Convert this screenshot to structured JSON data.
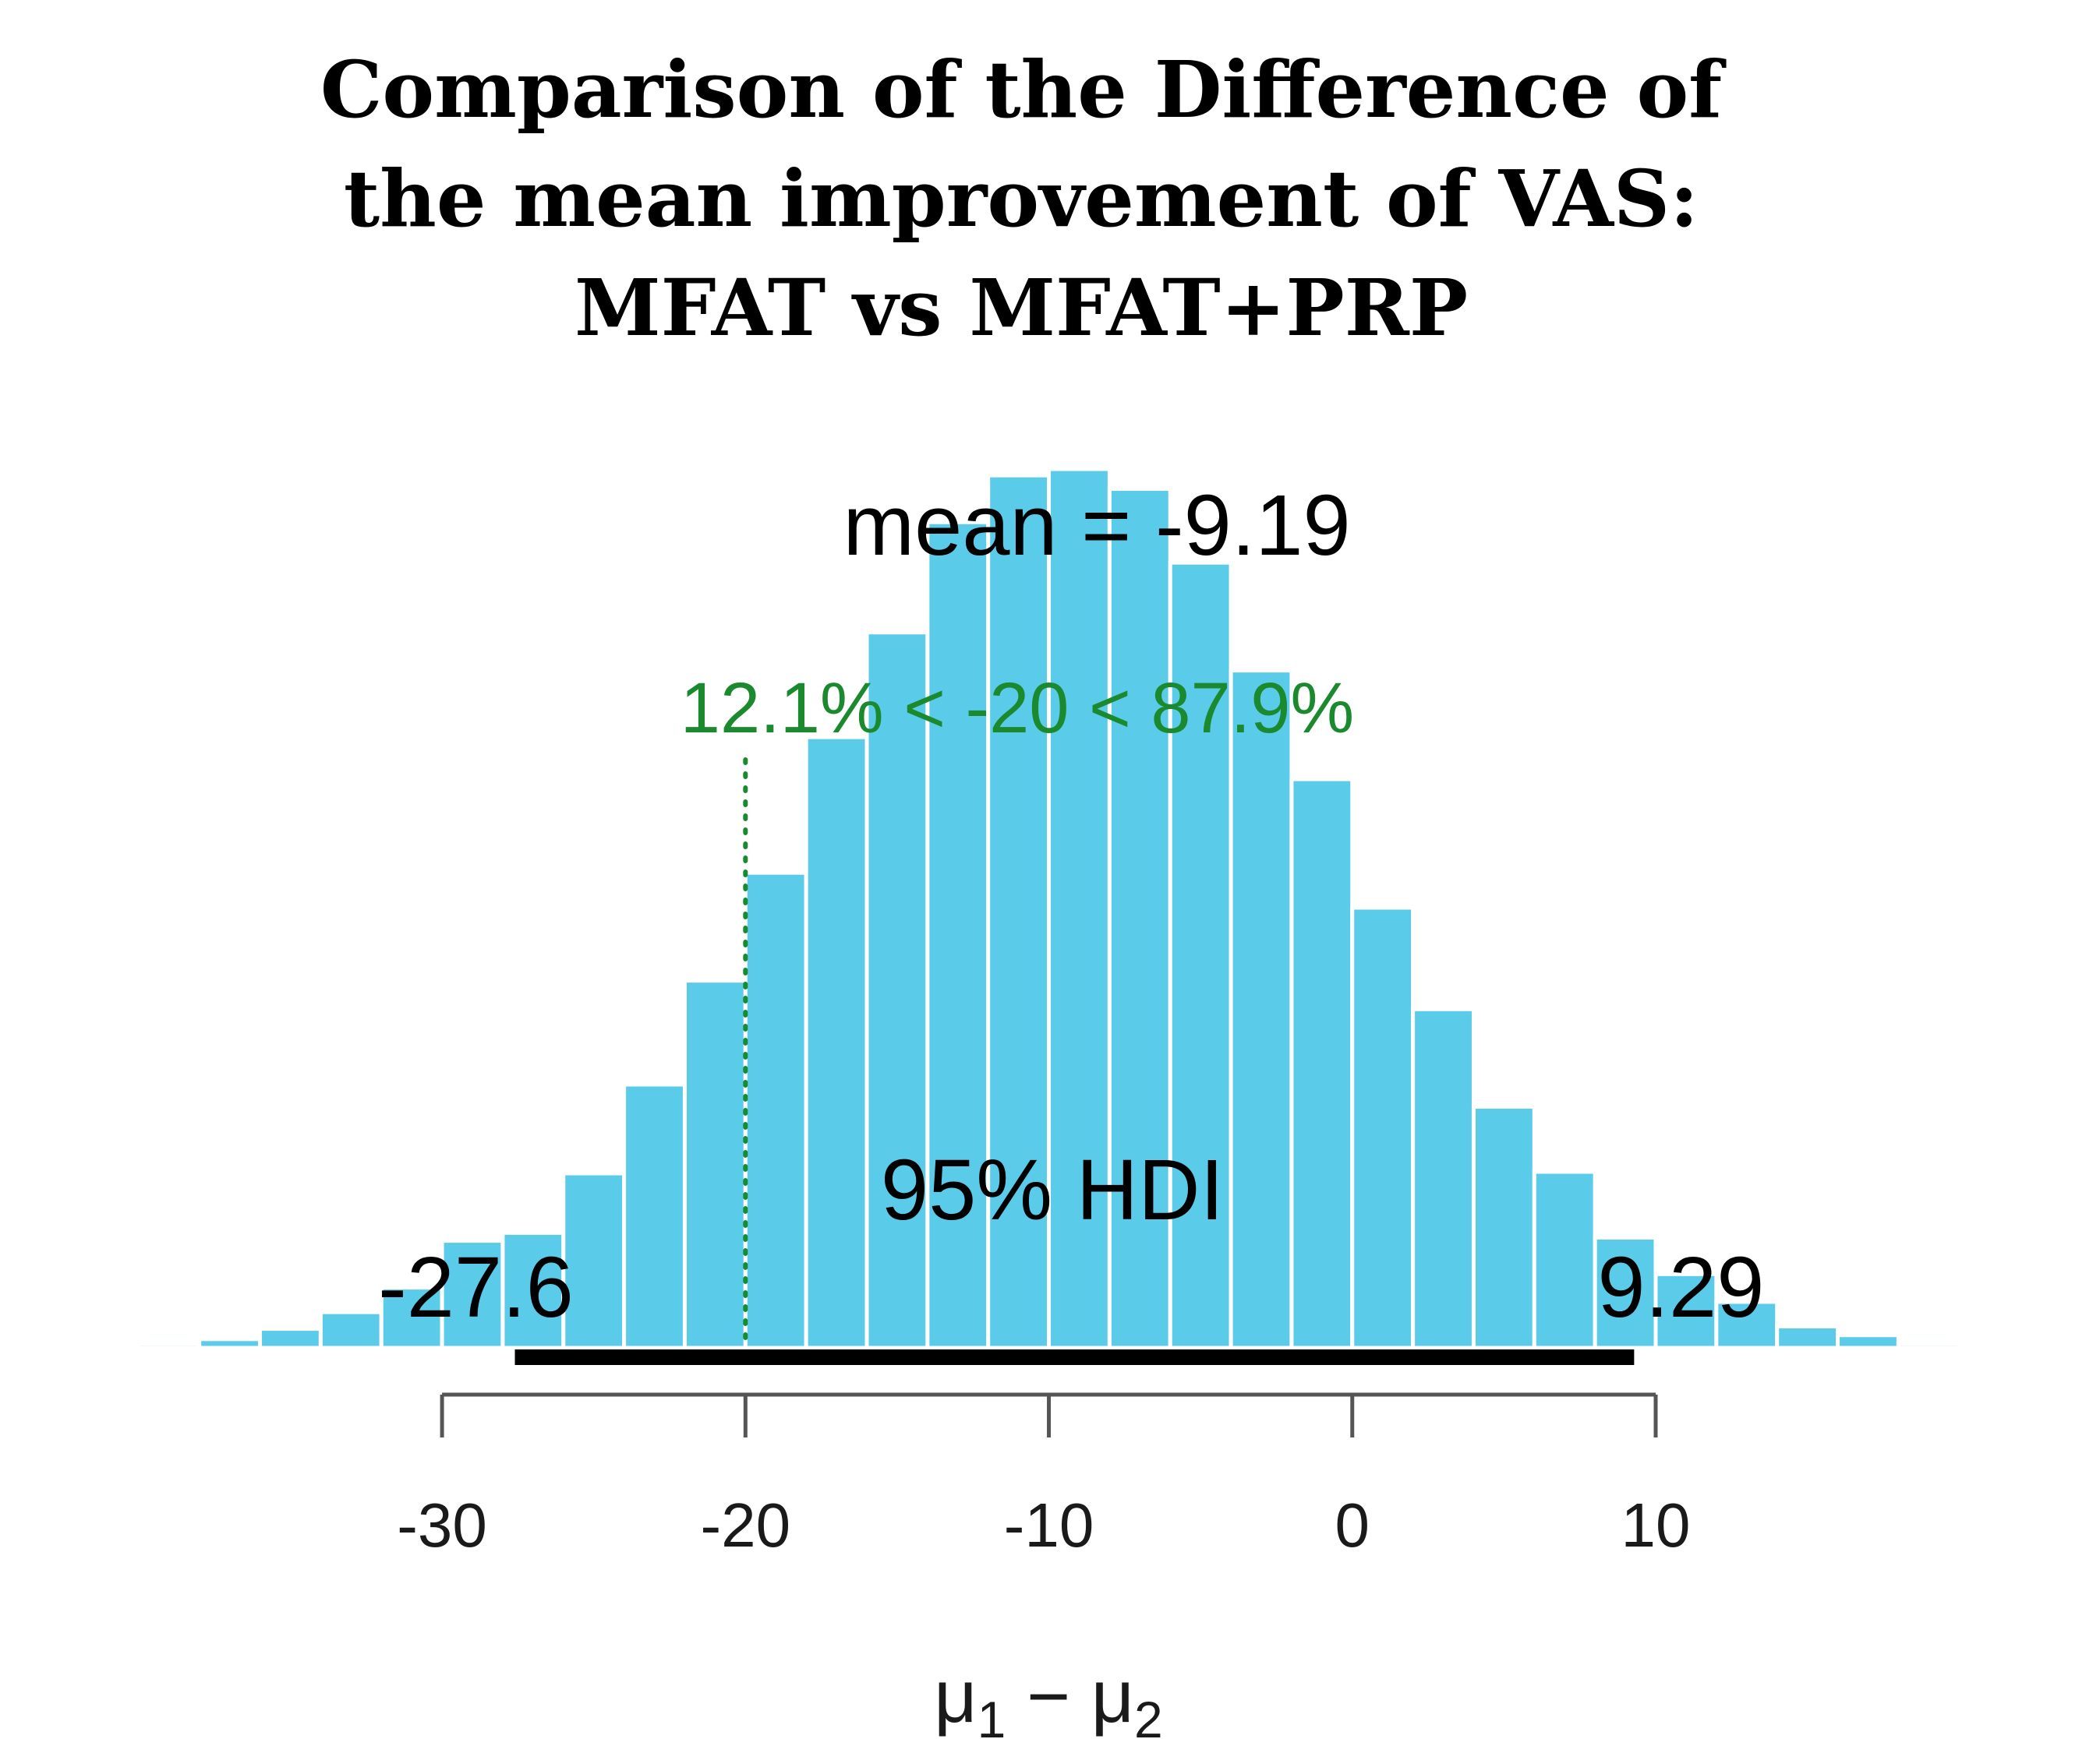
{
  "chart_data": {
    "type": "histogram",
    "title_lines": [
      "Comparison of the Difference of",
      "the mean improvement of VAS:",
      "MFAT vs MFAT+PRP"
    ],
    "xlabel": {
      "mu": "μ",
      "sub1": "1",
      "minus": " − ",
      "sub2": "2"
    },
    "xlim": [
      -42,
      23
    ],
    "ylim": [
      0,
      1110
    ],
    "x_ticks": [
      -30,
      -20,
      -10,
      0,
      10
    ],
    "x_tick_labels": [
      "-30",
      "-20",
      "-10",
      "0",
      "10"
    ],
    "bin_width": 2,
    "bin_starts": [
      -42,
      -40,
      -38,
      -36,
      -34,
      -32,
      -30,
      -28,
      -26,
      -24,
      -22,
      -20,
      -18,
      -16,
      -14,
      -12,
      -10,
      -8,
      -6,
      -4,
      -2,
      0,
      2,
      4,
      6,
      8,
      10,
      12,
      14,
      16,
      18,
      20
    ],
    "counts": [
      2,
      5,
      11,
      24,
      45,
      76,
      135,
      145,
      220,
      332,
      463,
      599,
      770,
      902,
      1041,
      1100,
      1108,
      1083,
      990,
      854,
      717,
      555,
      427,
      304,
      222,
      139,
      93,
      58,
      27,
      16,
      5,
      1
    ],
    "bar_color": "#5bcbea",
    "mean_label": "mean = -9.19",
    "mean": -9.19,
    "comparison": {
      "value": -20,
      "label": "12.1% < -20 < 87.9%",
      "color": "#1b8a2e"
    },
    "hdi": {
      "label": "95% HDI",
      "low": -27.6,
      "high": 9.29,
      "low_label": "-27.6",
      "high_label": "9.29"
    }
  }
}
